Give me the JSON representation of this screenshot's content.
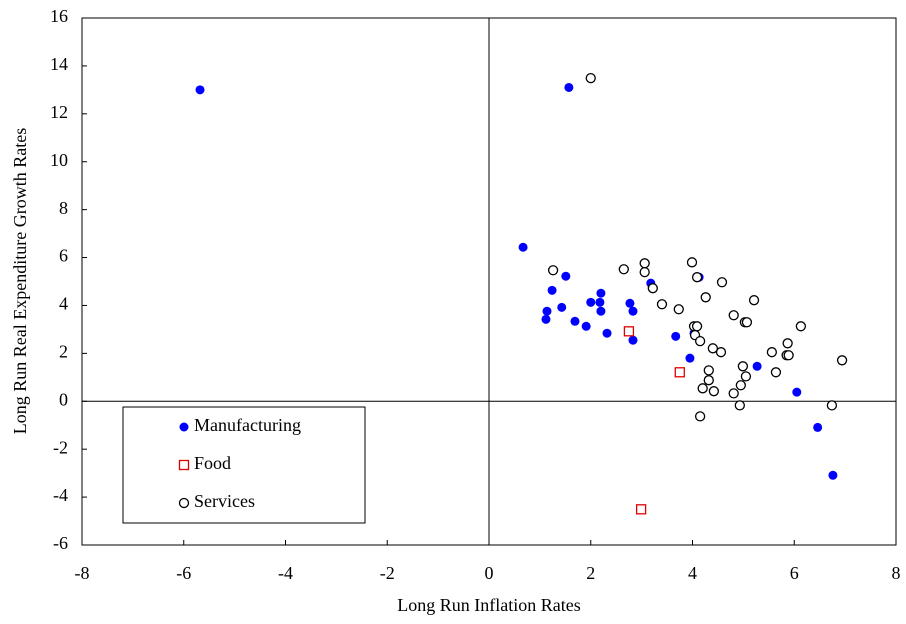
{
  "chart_data": {
    "type": "scatter",
    "xlabel": "Long Run Inflation Rates",
    "ylabel": "Long Run Real Expenditure Growth Rates",
    "xlim": [
      -8,
      8
    ],
    "xticks": [
      -8,
      -6,
      -4,
      -2,
      0,
      2,
      4,
      6,
      8
    ],
    "ylim": [
      -6,
      16
    ],
    "yticks": [
      -6,
      -4,
      -2,
      0,
      2,
      4,
      6,
      8,
      10,
      12,
      14,
      16
    ],
    "zero_lines": true,
    "legend": "lower left",
    "series": [
      {
        "name": "Manufacturing",
        "color": "#0000ff",
        "marker": "circle-filled",
        "x": [
          -5.68,
          1.57,
          0.67,
          1.51,
          1.24,
          1.14,
          1.12,
          1.43,
          1.69,
          1.91,
          2.0,
          2.2,
          2.18,
          2.2,
          2.32,
          2.77,
          2.83,
          2.83,
          3.18,
          3.67,
          3.95,
          4.03,
          4.13,
          5.27,
          6.05,
          6.46,
          6.76
        ],
        "y": [
          13.0,
          13.1,
          6.43,
          5.22,
          4.63,
          3.76,
          3.42,
          3.92,
          3.34,
          3.13,
          4.13,
          4.51,
          4.13,
          3.76,
          2.84,
          4.09,
          3.76,
          2.55,
          4.93,
          2.71,
          1.8,
          2.84,
          5.18,
          1.46,
          0.38,
          -1.09,
          -3.09
        ]
      },
      {
        "name": "Food",
        "color": "#e00000",
        "marker": "square-open",
        "x": [
          2.75,
          3.75,
          2.99
        ],
        "y": [
          2.92,
          1.21,
          -4.51
        ]
      },
      {
        "name": "Services",
        "color": "#000000",
        "marker": "circle-open",
        "x": [
          1.26,
          2.0,
          2.65,
          3.06,
          3.06,
          3.22,
          3.4,
          3.73,
          3.99,
          4.09,
          4.58,
          4.26,
          4.03,
          4.09,
          4.05,
          4.15,
          4.4,
          4.56,
          4.81,
          5.03,
          5.07,
          5.21,
          5.56,
          5.87,
          5.85,
          5.89,
          6.13,
          5.64,
          4.99,
          5.05,
          4.95,
          4.32,
          4.32,
          4.2,
          4.42,
          4.81,
          4.93,
          4.15,
          6.74,
          6.94
        ],
        "y": [
          5.47,
          13.49,
          5.51,
          5.76,
          5.39,
          4.72,
          4.05,
          3.84,
          5.8,
          5.18,
          4.97,
          4.34,
          3.13,
          3.13,
          2.76,
          2.51,
          2.21,
          2.05,
          3.59,
          3.3,
          3.3,
          4.22,
          2.05,
          2.42,
          1.92,
          1.92,
          3.13,
          1.21,
          1.46,
          1.04,
          0.67,
          1.29,
          0.88,
          0.54,
          0.42,
          0.33,
          -0.17,
          -0.63,
          -0.17,
          1.71
        ]
      }
    ]
  }
}
